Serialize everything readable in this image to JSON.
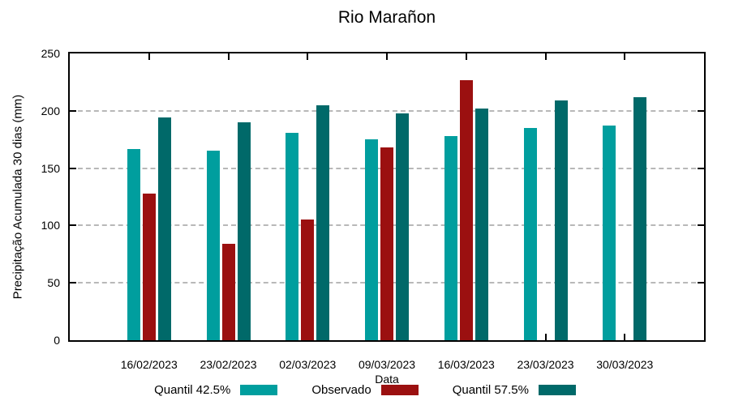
{
  "chart_data": {
    "type": "bar",
    "title": "Rio Marañon",
    "xlabel": "Data",
    "ylabel": "Precipitação Acumulada 30 dias (mm)",
    "ylim": [
      0,
      250
    ],
    "ytick_step": 50,
    "ytick_labels": [
      "0",
      "50",
      "100",
      "150",
      "200",
      "250"
    ],
    "grid": "horizontal dashed gridlines at y ticks",
    "legend_position": "below x-axis, single row",
    "categories": [
      "16/02/2023",
      "23/02/2023",
      "02/03/2023",
      "09/03/2023",
      "16/03/2023",
      "23/03/2023",
      "30/03/2023"
    ],
    "series": [
      {
        "name": "Quantil 42.5%",
        "color": "#009e9e",
        "values": [
          167,
          165,
          181,
          175,
          178,
          185,
          187
        ]
      },
      {
        "name": "Observado",
        "color": "#9b1010",
        "values": [
          128,
          84,
          105,
          168,
          227,
          null,
          null
        ]
      },
      {
        "name": "Quantil 57.5%",
        "color": "#006969",
        "values": [
          194,
          190,
          205,
          198,
          202,
          209,
          212
        ]
      }
    ]
  }
}
